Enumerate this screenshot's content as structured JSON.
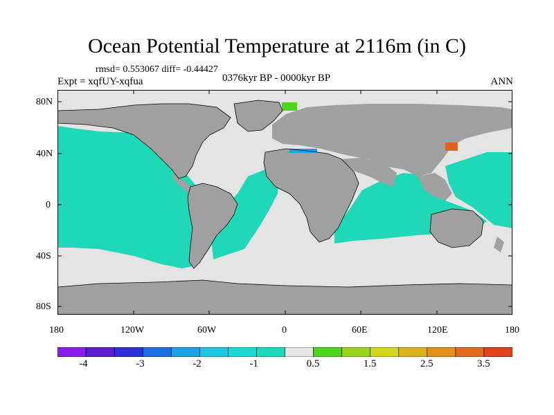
{
  "title": "Ocean Potential Temperature at 2116m (in C)",
  "stats": "rmsd= 0.553067 diff= -0.44427",
  "period": "0376kyr BP - 0000kyr BP",
  "experiment": "Expt = xqfUY-xqfua",
  "season": "ANN",
  "lat_labels": [
    "80N",
    "40N",
    "0",
    "40S",
    "80S"
  ],
  "lon_labels": [
    "180",
    "120W",
    "60W",
    "0",
    "60E",
    "120E",
    "180"
  ],
  "colorbar": {
    "colors": [
      "#8a1ee8",
      "#5a1ecc",
      "#2e2fd6",
      "#1f6ee0",
      "#1ea0e6",
      "#1ec4e0",
      "#1ed6d4",
      "#1ed8b8",
      "#e6e6e6",
      "#4ed51e",
      "#9ad41e",
      "#d2d41e",
      "#d9b21e",
      "#e0901e",
      "#e06a1e",
      "#e0401e"
    ],
    "labels": [
      "-4",
      "-3",
      "-2",
      "-1",
      "0.5",
      "1.5",
      "2.5",
      "3.5"
    ]
  },
  "map_colors": {
    "land": "#a0a0a0",
    "ice": "#e4e4e4",
    "ocean_main": "#1ed8b8",
    "blue": "#1ea0e6",
    "green": "#4ed51e",
    "red": "#e0601e"
  }
}
